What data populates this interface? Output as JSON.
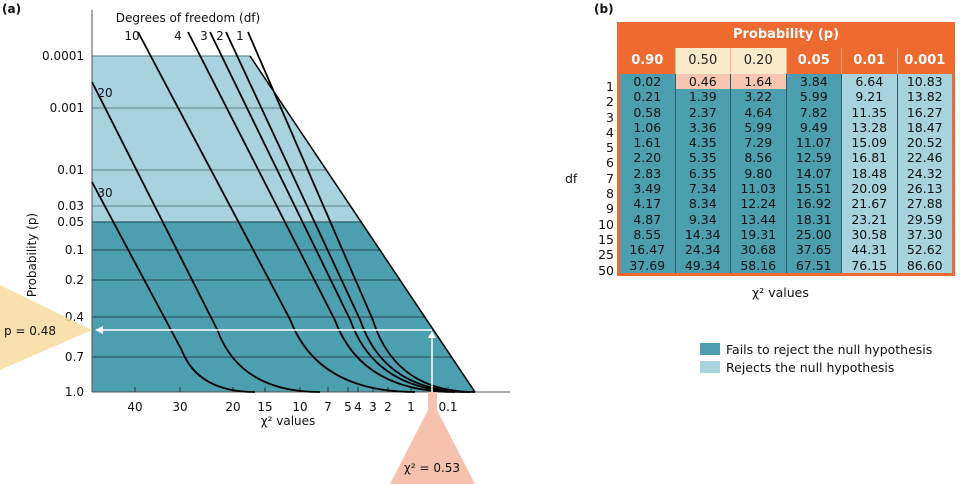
{
  "panel_a_label": "(a)",
  "panel_b_label": "(b)",
  "chart_data": [
    {
      "type": "line",
      "title": "Degrees of freedom (df)",
      "xlabel": "χ² values",
      "ylabel": "Probability (p)",
      "y_ticks": [
        "0.0001",
        "0.001",
        "0.01",
        "0.03",
        "0.05",
        "0.1",
        "0.2",
        "0.4",
        "0.7",
        "1.0"
      ],
      "y_tick_values": [
        0.0001,
        0.001,
        0.01,
        0.03,
        0.05,
        0.1,
        0.2,
        0.4,
        0.7,
        1.0
      ],
      "x_ticks": [
        "40",
        "30",
        "20",
        "15",
        "10",
        "7",
        "5",
        "4",
        "3",
        "2",
        "1",
        "0.1"
      ],
      "x_tick_values": [
        40,
        30,
        20,
        15,
        10,
        7,
        5,
        4,
        3,
        2,
        1,
        0.1
      ],
      "series_labels": [
        "10",
        "4",
        "3",
        "2",
        "1",
        "20",
        "30"
      ],
      "series": [
        {
          "name": "1",
          "df": 1
        },
        {
          "name": "2",
          "df": 2
        },
        {
          "name": "3",
          "df": 3
        },
        {
          "name": "4",
          "df": 4
        },
        {
          "name": "10",
          "df": 10
        },
        {
          "name": "20",
          "df": 20
        },
        {
          "name": "30",
          "df": 30
        }
      ],
      "critical_p": 0.05,
      "annotations": {
        "p_value": "p = 0.48",
        "chi_value": "χ² = 0.53",
        "p": 0.48,
        "chi": 0.53
      }
    },
    {
      "type": "table",
      "title": "Probability (p)",
      "columns": [
        "0.90",
        "0.50",
        "0.20",
        "0.05",
        "0.01",
        "0.001"
      ],
      "highlight_columns": [
        "0.50",
        "0.20"
      ],
      "row_header": "df",
      "rows": [
        "1",
        "2",
        "3",
        "4",
        "5",
        "6",
        "7",
        "8",
        "9",
        "10",
        "15",
        "25",
        "50"
      ],
      "values": [
        [
          "0.02",
          "0.46",
          "1.64",
          "3.84",
          "6.64",
          "10.83"
        ],
        [
          "0.21",
          "1.39",
          "3.22",
          "5.99",
          "9.21",
          "13.82"
        ],
        [
          "0.58",
          "2.37",
          "4.64",
          "7.82",
          "11.35",
          "16.27"
        ],
        [
          "1.06",
          "3.36",
          "5.99",
          "9.49",
          "13.28",
          "18.47"
        ],
        [
          "1.61",
          "4.35",
          "7.29",
          "11.07",
          "15.09",
          "20.52"
        ],
        [
          "2.20",
          "5.35",
          "8.56",
          "12.59",
          "16.81",
          "22.46"
        ],
        [
          "2.83",
          "6.35",
          "9.80",
          "14.07",
          "18.48",
          "24.32"
        ],
        [
          "3.49",
          "7.34",
          "11.03",
          "15.51",
          "20.09",
          "26.13"
        ],
        [
          "4.17",
          "8.34",
          "12.24",
          "16.92",
          "21.67",
          "27.88"
        ],
        [
          "4.87",
          "9.34",
          "13.44",
          "18.31",
          "23.21",
          "29.59"
        ],
        [
          "8.55",
          "14.34",
          "19.31",
          "25.00",
          "30.58",
          "37.30"
        ],
        [
          "16.47",
          "24.34",
          "30.68",
          "37.65",
          "44.31",
          "52.62"
        ],
        [
          "37.69",
          "49.34",
          "58.16",
          "67.51",
          "76.15",
          "86.60"
        ]
      ],
      "xlabel": "χ² values"
    }
  ],
  "legend": [
    {
      "label": "Fails to reject the null hypothesis",
      "color": "#4b9fae"
    },
    {
      "label": "Rejects the null hypothesis",
      "color": "#a6d3dd"
    }
  ],
  "colors": {
    "accept": "#4b9fae",
    "reject": "#a6d3dd",
    "table_header": "#ef6a2e",
    "highlight_header": "#fbeacb",
    "highlight_cell": "#f7c6b0",
    "p_callout": "#f7dca0",
    "chi_callout": "#f6c2ae"
  }
}
